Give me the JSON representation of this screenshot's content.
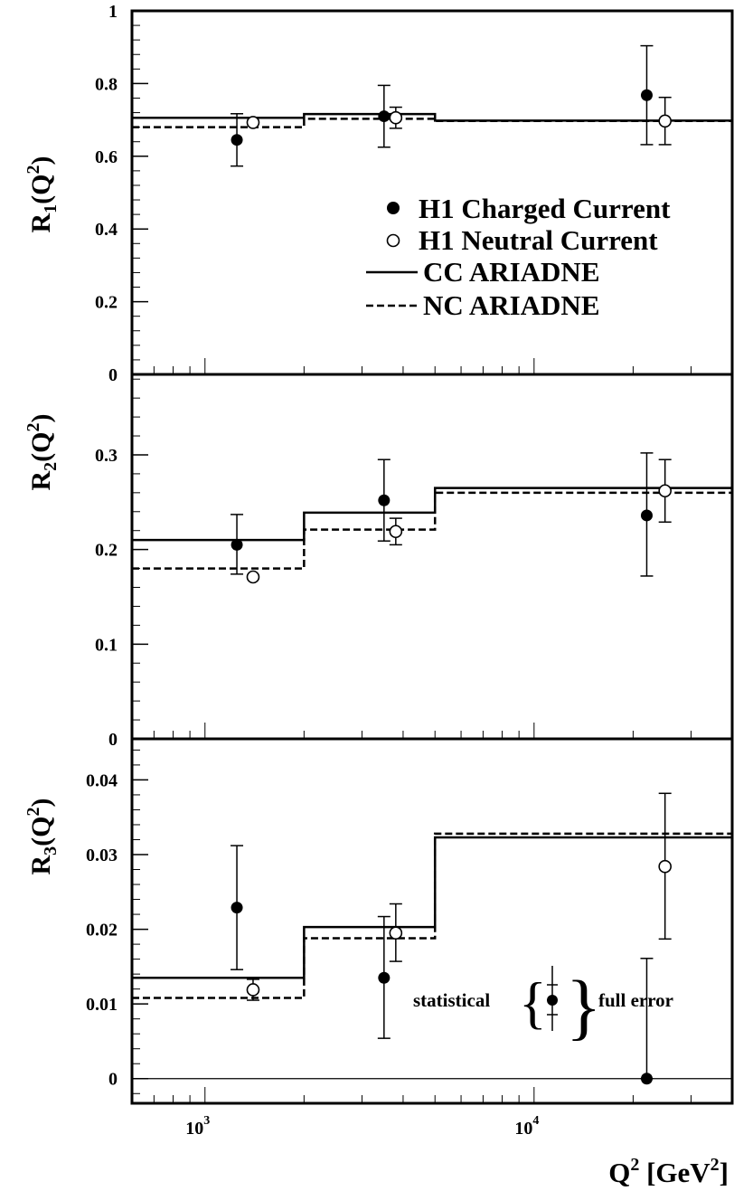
{
  "chart_data": [
    {
      "type": "scatter",
      "panel": "R1",
      "ylabel": "R",
      "ylabel_sub": "1",
      "ylabel_arg": "(Q",
      "ylabel_sup": "2",
      "ylabel_end": ")",
      "xscale": "log",
      "xlim": [
        600,
        40000
      ],
      "ylim": [
        0,
        1
      ],
      "yticks": [
        {
          "v": 0,
          "label": "0"
        },
        {
          "v": 0.2,
          "label": "0.2"
        },
        {
          "v": 0.4,
          "label": "0.4"
        },
        {
          "v": 0.6,
          "label": "0.6"
        },
        {
          "v": 0.8,
          "label": "0.8"
        },
        {
          "v": 1,
          "label": "1"
        }
      ],
      "series": [
        {
          "name": "H1 Charged Current",
          "marker": "filled",
          "points": [
            {
              "x": 1250,
              "y": 0.645,
              "lo": 0.573,
              "hi": 0.717
            },
            {
              "x": 3500,
              "y": 0.71,
              "lo": 0.625,
              "hi": 0.795
            },
            {
              "x": 22000,
              "y": 0.768,
              "lo": 0.632,
              "hi": 0.904
            }
          ]
        },
        {
          "name": "H1 Neutral Current",
          "marker": "open",
          "points": [
            {
              "x": 1400,
              "y": 0.693,
              "lo": 0.693,
              "hi": 0.693
            },
            {
              "x": 3800,
              "y": 0.706,
              "lo": 0.677,
              "hi": 0.735
            },
            {
              "x": 25000,
              "y": 0.697,
              "lo": 0.632,
              "hi": 0.762
            }
          ]
        },
        {
          "name": "CC ARIADNE",
          "style": "solid",
          "steps": [
            {
              "x1": 600,
              "x2": 2000,
              "y": 0.706
            },
            {
              "x1": 2000,
              "x2": 5000,
              "y": 0.716
            },
            {
              "x1": 5000,
              "x2": 40000,
              "y": 0.698
            }
          ]
        },
        {
          "name": "NC ARIADNE",
          "style": "dashed",
          "steps": [
            {
              "x1": 600,
              "x2": 2000,
              "y": 0.68
            },
            {
              "x1": 2000,
              "x2": 5000,
              "y": 0.703
            },
            {
              "x1": 5000,
              "x2": 40000,
              "y": 0.697
            }
          ]
        }
      ],
      "legend": [
        {
          "label": "H1 Charged Current",
          "marker": "filled"
        },
        {
          "label": "H1 Neutral Current",
          "marker": "open"
        },
        {
          "label": "CC ARIADNE",
          "marker": "solid-line"
        },
        {
          "label": "NC ARIADNE",
          "marker": "dashed-line"
        }
      ],
      "legend_placement": "middle-right"
    },
    {
      "type": "scatter",
      "panel": "R2",
      "ylabel": "R",
      "ylabel_sub": "2",
      "ylabel_arg": "(Q",
      "ylabel_sup": "2",
      "ylabel_end": ")",
      "xscale": "log",
      "xlim": [
        600,
        40000
      ],
      "ylim": [
        0,
        0.385
      ],
      "yticks": [
        {
          "v": 0,
          "label": "0"
        },
        {
          "v": 0.1,
          "label": "0.1"
        },
        {
          "v": 0.2,
          "label": "0.2"
        },
        {
          "v": 0.3,
          "label": "0.3"
        }
      ],
      "series": [
        {
          "name": "H1 Charged Current",
          "marker": "filled",
          "points": [
            {
              "x": 1250,
              "y": 0.205,
              "lo": 0.174,
              "hi": 0.237
            },
            {
              "x": 3500,
              "y": 0.252,
              "lo": 0.209,
              "hi": 0.295
            },
            {
              "x": 22000,
              "y": 0.236,
              "lo": 0.172,
              "hi": 0.302
            }
          ]
        },
        {
          "name": "H1 Neutral Current",
          "marker": "open",
          "points": [
            {
              "x": 1400,
              "y": 0.171,
              "lo": 0.171,
              "hi": 0.171
            },
            {
              "x": 3800,
              "y": 0.219,
              "lo": 0.205,
              "hi": 0.233
            },
            {
              "x": 25000,
              "y": 0.262,
              "lo": 0.229,
              "hi": 0.295
            }
          ]
        },
        {
          "name": "CC ARIADNE",
          "style": "solid",
          "steps": [
            {
              "x1": 600,
              "x2": 2000,
              "y": 0.21
            },
            {
              "x1": 2000,
              "x2": 5000,
              "y": 0.239
            },
            {
              "x1": 5000,
              "x2": 40000,
              "y": 0.265
            }
          ]
        },
        {
          "name": "NC ARIADNE",
          "style": "dashed",
          "steps": [
            {
              "x1": 600,
              "x2": 2000,
              "y": 0.18
            },
            {
              "x1": 2000,
              "x2": 5000,
              "y": 0.221
            },
            {
              "x1": 5000,
              "x2": 40000,
              "y": 0.26
            }
          ]
        }
      ]
    },
    {
      "type": "scatter",
      "panel": "R3",
      "ylabel": "R",
      "ylabel_sub": "3",
      "ylabel_arg": "(Q",
      "ylabel_sup": "2",
      "ylabel_end": ")",
      "xlabel": "Q",
      "xlabel_sup": "2",
      "xlabel_unit": " [GeV",
      "xlabel_unit_sup": "2",
      "xlabel_end": "]",
      "xscale": "log",
      "xlim": [
        600,
        40000
      ],
      "ylim": [
        -0.0033,
        0.0455
      ],
      "yticks": [
        {
          "v": 0,
          "label": "0"
        },
        {
          "v": 0.01,
          "label": "0.01"
        },
        {
          "v": 0.02,
          "label": "0.02"
        },
        {
          "v": 0.03,
          "label": "0.03"
        },
        {
          "v": 0.04,
          "label": "0.04"
        }
      ],
      "xticks": [
        {
          "v": 1000,
          "base": "10",
          "exp": "3"
        },
        {
          "v": 10000,
          "base": "10",
          "exp": "4"
        }
      ],
      "series": [
        {
          "name": "H1 Charged Current",
          "marker": "filled",
          "points": [
            {
              "x": 1250,
              "y": 0.0229,
              "lo": 0.0146,
              "hi": 0.0312
            },
            {
              "x": 3500,
              "y": 0.0135,
              "lo": 0.0054,
              "hi": 0.0217
            },
            {
              "x": 22000,
              "y": 0.0,
              "lo": 0.0,
              "hi": 0.0161
            }
          ]
        },
        {
          "name": "H1 Neutral Current",
          "marker": "open",
          "points": [
            {
              "x": 1400,
              "y": 0.0119,
              "lo": 0.0105,
              "hi": 0.0133
            },
            {
              "x": 3800,
              "y": 0.0195,
              "lo": 0.0157,
              "hi": 0.0234
            },
            {
              "x": 25000,
              "y": 0.0284,
              "lo": 0.0187,
              "hi": 0.0382
            }
          ]
        },
        {
          "name": "CC ARIADNE",
          "style": "solid",
          "steps": [
            {
              "x1": 600,
              "x2": 2000,
              "y": 0.0135
            },
            {
              "x1": 2000,
              "x2": 5000,
              "y": 0.0203
            },
            {
              "x1": 5000,
              "x2": 40000,
              "y": 0.0323
            }
          ]
        },
        {
          "name": "NC ARIADNE",
          "style": "dashed",
          "steps": [
            {
              "x1": 600,
              "x2": 2000,
              "y": 0.0108
            },
            {
              "x1": 2000,
              "x2": 5000,
              "y": 0.0188
            },
            {
              "x1": 5000,
              "x2": 40000,
              "y": 0.0328
            }
          ]
        }
      ],
      "error_key": {
        "left": "statistical",
        "right": "full error"
      }
    }
  ]
}
